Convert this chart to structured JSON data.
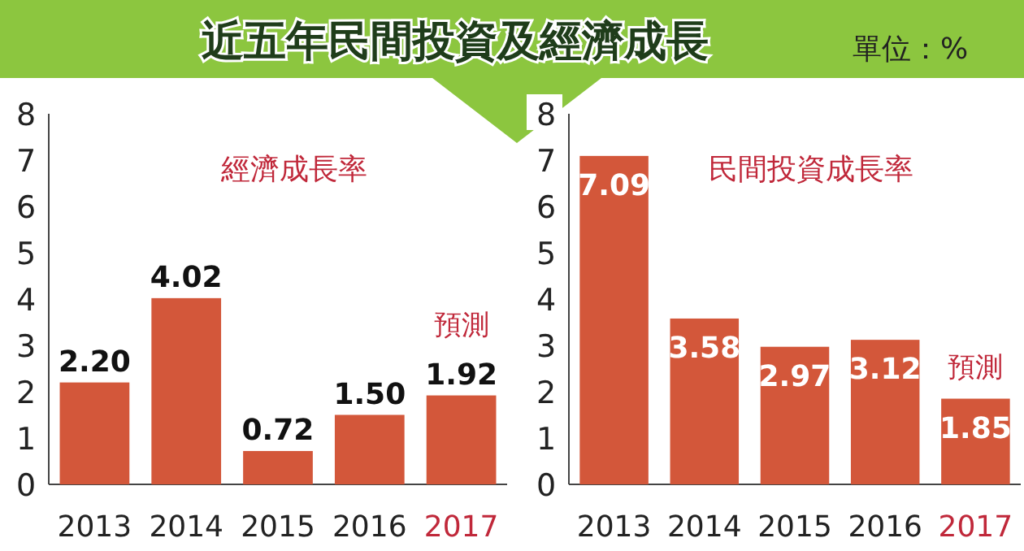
{
  "chart_data": [
    {
      "type": "bar",
      "title": "近五年民間投資及經濟成長",
      "subtitle": "經濟成長率",
      "categories": [
        "2013",
        "2014",
        "2015",
        "2016",
        "2017"
      ],
      "values": [
        2.2,
        4.02,
        0.72,
        1.5,
        1.92
      ],
      "value_labels": [
        "2.20",
        "4.02",
        "0.72",
        "1.50",
        "1.92"
      ],
      "color": "#d3573a",
      "ylim": [
        0,
        8
      ],
      "yticks": [
        0,
        1,
        2,
        3,
        4,
        5,
        6,
        7,
        8
      ],
      "annotations": [
        "預測"
      ],
      "grid": false
    },
    {
      "type": "bar",
      "subtitle": "民間投資成長率",
      "categories": [
        "2013",
        "2014",
        "2015",
        "2016",
        "2017"
      ],
      "values": [
        7.09,
        3.58,
        2.97,
        3.12,
        1.85
      ],
      "value_labels": [
        "7.09",
        "3.58",
        "2.97",
        "3.12",
        "1.85"
      ],
      "color": "#d3573a",
      "ylim": [
        0,
        8
      ],
      "yticks": [
        0,
        1,
        2,
        3,
        4,
        5,
        6,
        7,
        8
      ],
      "annotations": [
        "預測",
        "單位：%"
      ],
      "grid": false
    }
  ]
}
